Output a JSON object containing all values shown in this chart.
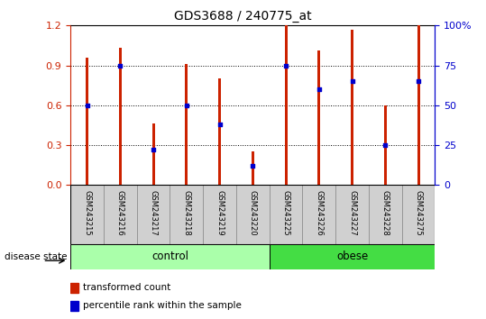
{
  "title": "GDS3688 / 240775_at",
  "samples": [
    "GSM243215",
    "GSM243216",
    "GSM243217",
    "GSM243218",
    "GSM243219",
    "GSM243220",
    "GSM243225",
    "GSM243226",
    "GSM243227",
    "GSM243228",
    "GSM243275"
  ],
  "transformed_count": [
    0.96,
    1.03,
    0.46,
    0.91,
    0.8,
    0.25,
    1.2,
    1.01,
    1.17,
    0.6,
    1.2
  ],
  "percentile_rank": [
    50,
    75,
    22,
    50,
    38,
    12,
    75,
    60,
    65,
    25,
    65
  ],
  "groups": [
    "control",
    "control",
    "control",
    "control",
    "control",
    "control",
    "obese",
    "obese",
    "obese",
    "obese",
    "obese"
  ],
  "control_color": "#aaffaa",
  "obese_color": "#44dd44",
  "bar_color": "#cc2200",
  "dot_color": "#0000cc",
  "ylim_left": [
    0,
    1.2
  ],
  "ylim_right": [
    0,
    100
  ],
  "yticks_left": [
    0,
    0.3,
    0.6,
    0.9,
    1.2
  ],
  "yticks_right": [
    0,
    25,
    50,
    75,
    100
  ],
  "bar_width": 0.08,
  "figsize": [
    5.39,
    3.54
  ],
  "dpi": 100
}
